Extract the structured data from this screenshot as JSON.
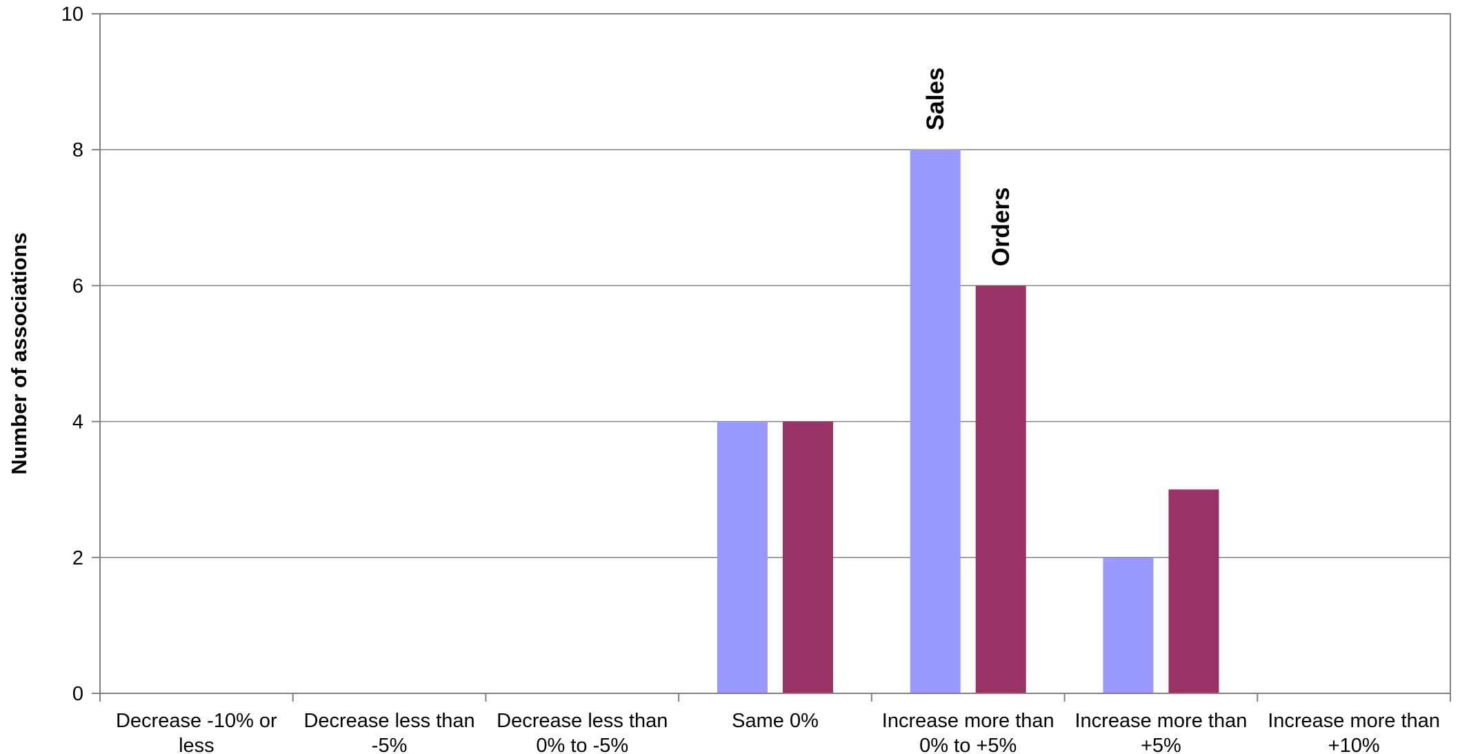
{
  "chart_data": {
    "type": "bar",
    "title": "",
    "xlabel": "",
    "ylabel": "Number of associations",
    "ylim": [
      0,
      10
    ],
    "yticks": [
      0,
      2,
      4,
      6,
      8,
      10
    ],
    "grid": true,
    "legend": "none",
    "categories": [
      [
        "Decrease -10% or",
        "less"
      ],
      [
        "Decrease less than",
        "-5%"
      ],
      [
        "Decrease less than",
        "0% to -5%"
      ],
      [
        "Same 0%",
        ""
      ],
      [
        "Increase more than",
        "0% to +5%"
      ],
      [
        "Increase more than",
        "+5%"
      ],
      [
        "Increase more than",
        "+10%"
      ]
    ],
    "series": [
      {
        "name": "Sales",
        "color": "#9999ff",
        "values": [
          0,
          0,
          0,
          4,
          8,
          2,
          0
        ]
      },
      {
        "name": "Orders",
        "color": "#993366",
        "values": [
          0,
          0,
          0,
          4,
          6,
          3,
          0
        ]
      }
    ],
    "series_labels": [
      {
        "text": "Sales",
        "series": 0,
        "category": 4
      },
      {
        "text": "Orders",
        "series": 1,
        "category": 4
      }
    ]
  }
}
